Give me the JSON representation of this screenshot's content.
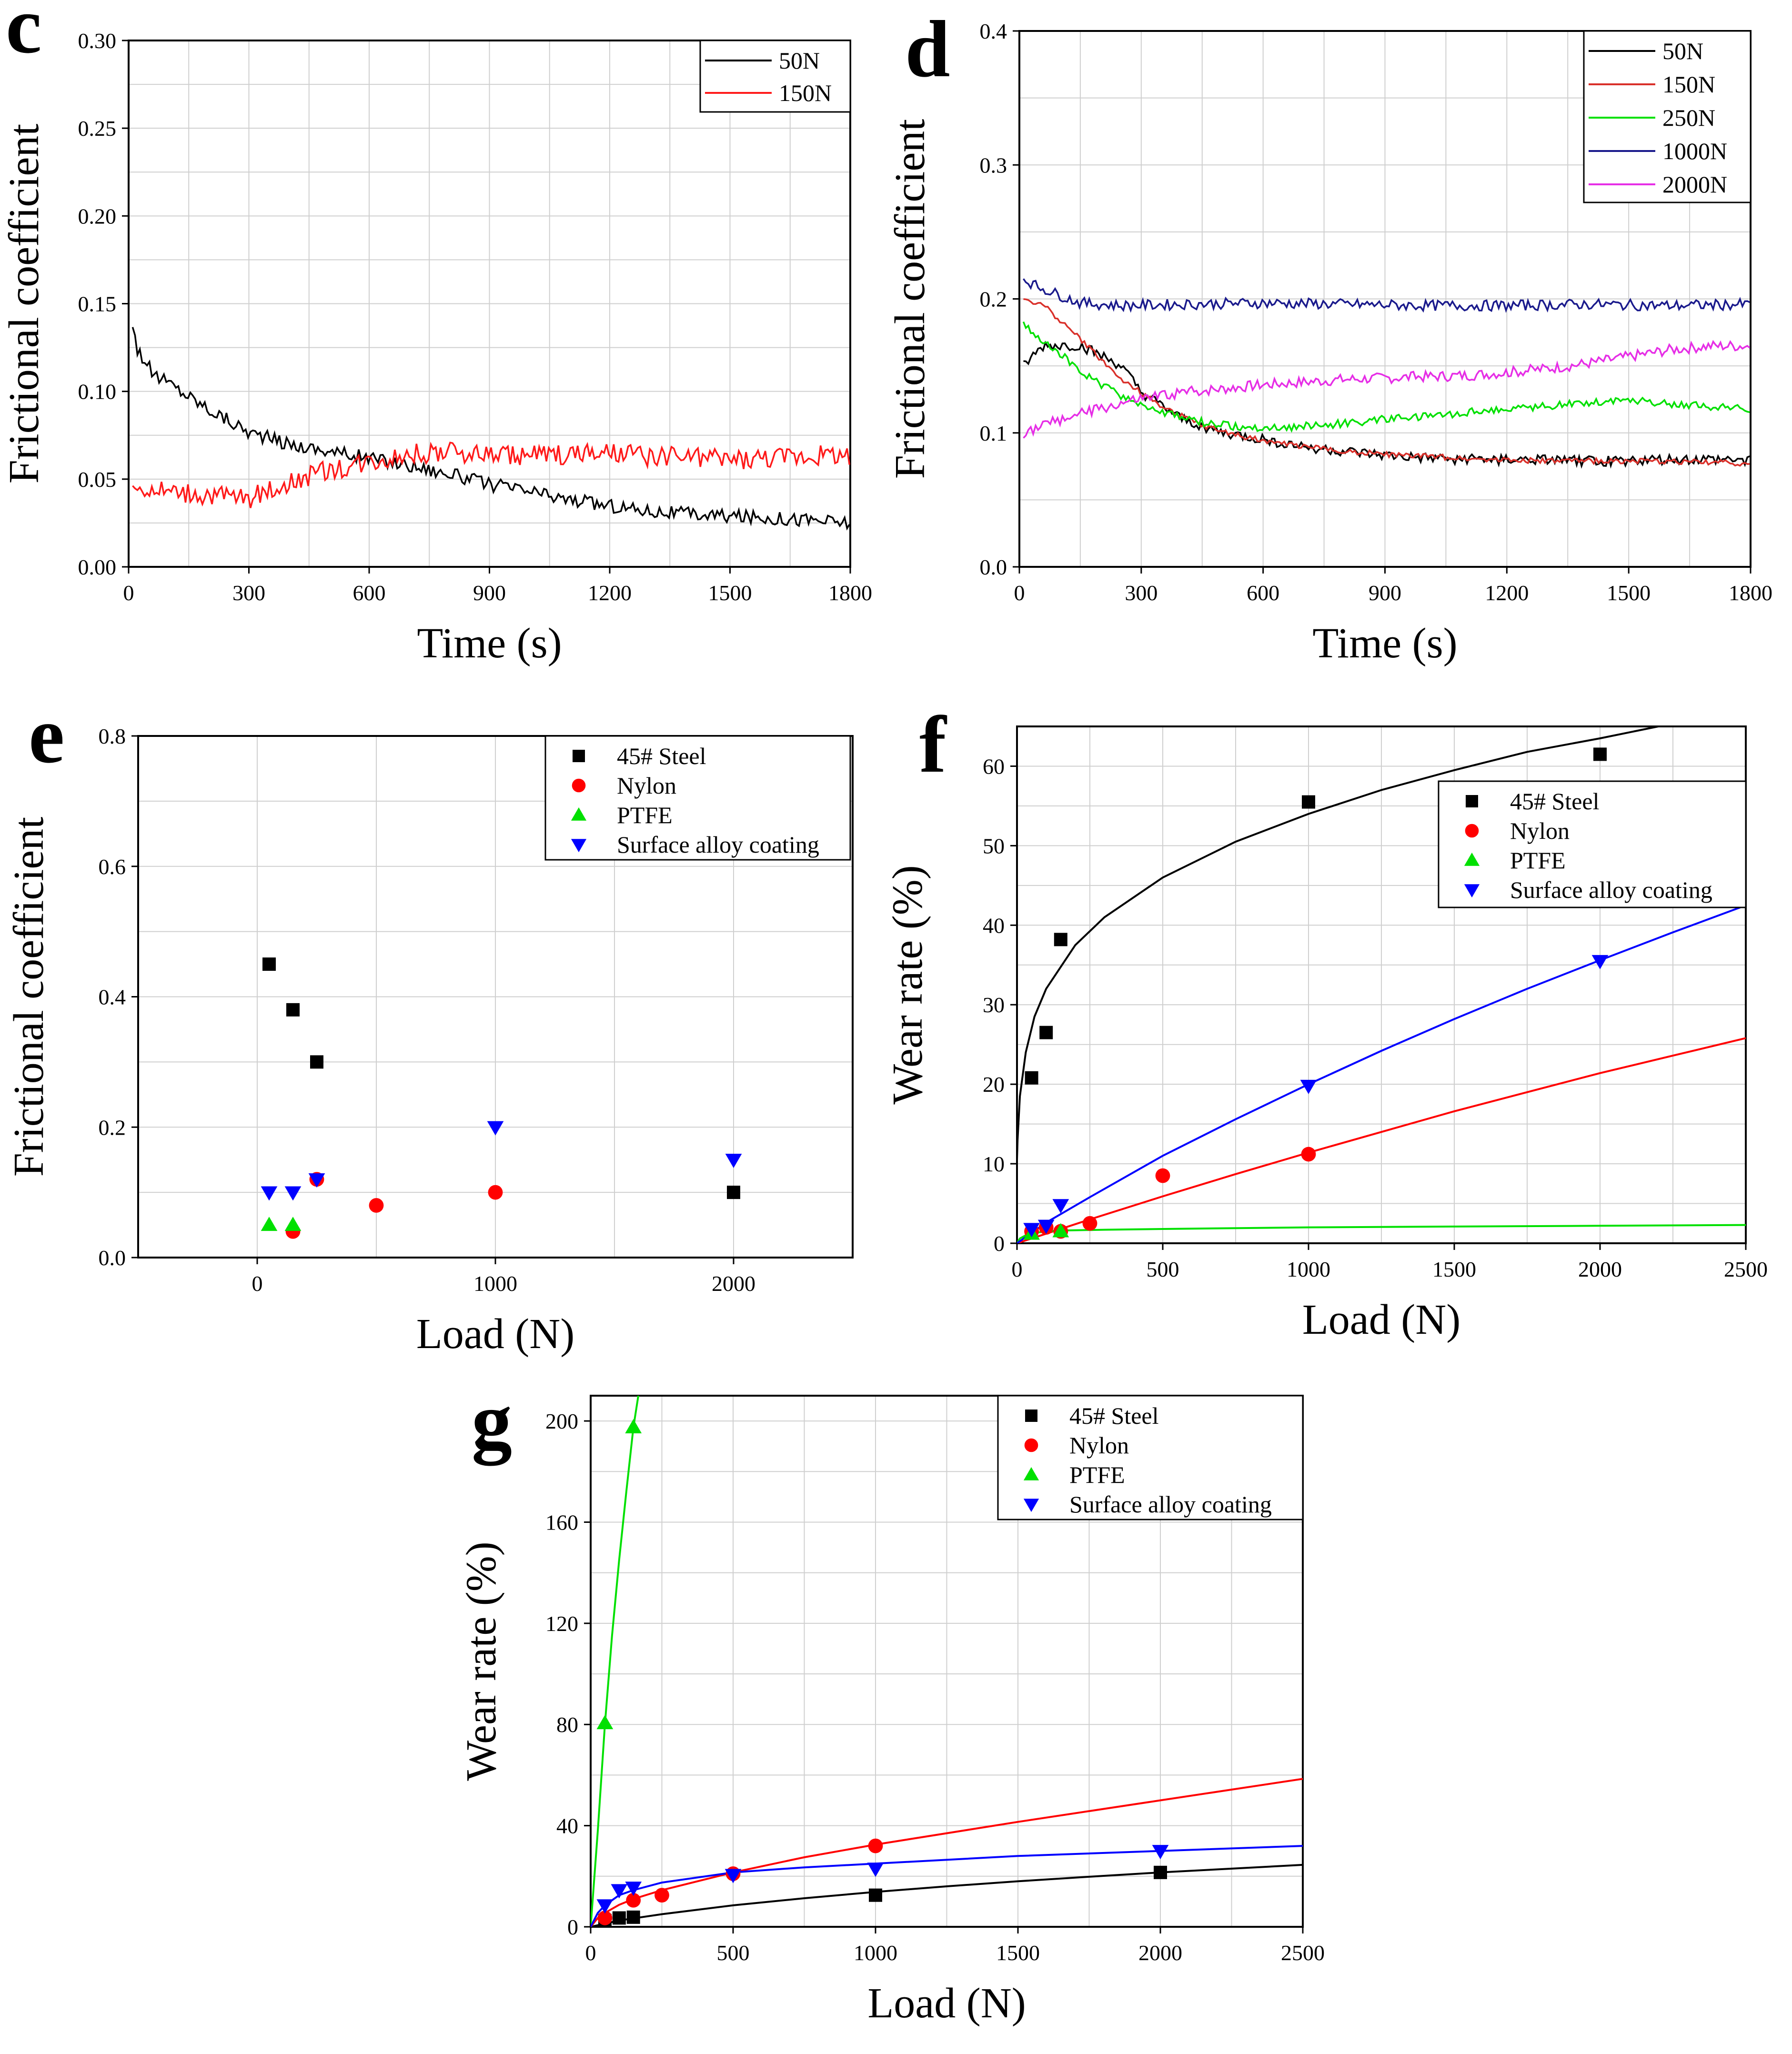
{
  "colors": {
    "black": "#000000",
    "red": "#ff0000",
    "green": "#00e000",
    "blue": "#0000ff",
    "navy": "#1a1a8c",
    "magenta": "#e62ee6",
    "brightred": "#ff1a1a",
    "grid": "#cfcfcf"
  },
  "chart_data": [
    {
      "id": "c",
      "panel_letter": "c",
      "type": "line",
      "xlabel": "Time (s)",
      "ylabel": "Frictional coefficient",
      "xlim": [
        0,
        1800
      ],
      "ylim": [
        0,
        0.3
      ],
      "xticks": [
        "0",
        "300",
        "600",
        "900",
        "1200",
        "1500",
        "1800"
      ],
      "yticks": [
        "0.00",
        "0.05",
        "0.10",
        "0.15",
        "0.20",
        "0.25",
        "0.30"
      ],
      "legend_position": "top-right",
      "series": [
        {
          "name": "50N",
          "color": "#000000",
          "noise": 0.004,
          "x": [
            10,
            20,
            60,
            100,
            200,
            300,
            400,
            500,
            600,
            700,
            800,
            900,
            1000,
            1100,
            1200,
            1300,
            1400,
            1500,
            1600,
            1700,
            1800
          ],
          "y": [
            0.14,
            0.125,
            0.11,
            0.105,
            0.09,
            0.077,
            0.07,
            0.066,
            0.062,
            0.058,
            0.053,
            0.047,
            0.043,
            0.038,
            0.035,
            0.032,
            0.03,
            0.029,
            0.028,
            0.027,
            0.025
          ]
        },
        {
          "name": "150N",
          "color": "#ff1a1a",
          "noise": 0.006,
          "x": [
            10,
            100,
            200,
            300,
            400,
            500,
            600,
            700,
            800,
            900,
            1000,
            1100,
            1200,
            1300,
            1400,
            1500,
            1600,
            1700,
            1800
          ],
          "y": [
            0.045,
            0.043,
            0.041,
            0.039,
            0.048,
            0.055,
            0.06,
            0.064,
            0.065,
            0.064,
            0.064,
            0.064,
            0.064,
            0.063,
            0.062,
            0.061,
            0.062,
            0.063,
            0.064
          ]
        }
      ]
    },
    {
      "id": "d",
      "panel_letter": "d",
      "type": "line",
      "xlabel": "Time (s)",
      "ylabel": "Frictional coefficient",
      "xlim": [
        0,
        1800
      ],
      "ylim": [
        0,
        0.4
      ],
      "xticks": [
        "0",
        "300",
        "600",
        "900",
        "1200",
        "1500",
        "1800"
      ],
      "yticks": [
        "0.0",
        "0.1",
        "0.2",
        "0.3",
        "0.4"
      ],
      "legend_position": "top-right",
      "series": [
        {
          "name": "50N",
          "color": "#000000",
          "noise": 0.004,
          "x": [
            10,
            60,
            150,
            250,
            300,
            400,
            500,
            600,
            700,
            800,
            900,
            1000,
            1200,
            1400,
            1600,
            1800
          ],
          "y": [
            0.15,
            0.165,
            0.165,
            0.15,
            0.13,
            0.11,
            0.1,
            0.095,
            0.09,
            0.086,
            0.083,
            0.081,
            0.08,
            0.079,
            0.08,
            0.08
          ]
        },
        {
          "name": "150N",
          "color": "#d9302a",
          "noise": 0.002,
          "x": [
            10,
            60,
            150,
            250,
            350,
            450,
            550,
            650,
            750,
            900,
            1100,
            1300,
            1500,
            1700,
            1800
          ],
          "y": [
            0.2,
            0.195,
            0.17,
            0.14,
            0.12,
            0.105,
            0.097,
            0.092,
            0.088,
            0.084,
            0.081,
            0.079,
            0.079,
            0.078,
            0.077
          ]
        },
        {
          "name": "250N",
          "color": "#00e000",
          "noise": 0.003,
          "x": [
            10,
            80,
            150,
            250,
            350,
            450,
            550,
            650,
            750,
            900,
            1000,
            1100,
            1200,
            1300,
            1400,
            1500,
            1600,
            1700,
            1800
          ],
          "y": [
            0.18,
            0.165,
            0.145,
            0.128,
            0.115,
            0.108,
            0.104,
            0.104,
            0.106,
            0.11,
            0.112,
            0.115,
            0.118,
            0.12,
            0.123,
            0.125,
            0.122,
            0.12,
            0.118
          ]
        },
        {
          "name": "1000N",
          "color": "#1a1a8c",
          "noise": 0.004,
          "x": [
            10,
            40,
            80,
            150,
            250,
            400,
            600,
            800,
            1000,
            1200,
            1400,
            1600,
            1800
          ],
          "y": [
            0.215,
            0.21,
            0.205,
            0.197,
            0.195,
            0.196,
            0.197,
            0.196,
            0.195,
            0.195,
            0.196,
            0.195,
            0.196
          ]
        },
        {
          "name": "2000N",
          "color": "#e62ee6",
          "noise": 0.004,
          "x": [
            10,
            100,
            200,
            300,
            400,
            500,
            600,
            700,
            800,
            900,
            1000,
            1100,
            1200,
            1300,
            1400,
            1500,
            1600,
            1700,
            1800
          ],
          "y": [
            0.1,
            0.11,
            0.118,
            0.125,
            0.13,
            0.133,
            0.136,
            0.138,
            0.14,
            0.141,
            0.142,
            0.143,
            0.145,
            0.148,
            0.152,
            0.157,
            0.162,
            0.165,
            0.165
          ]
        }
      ]
    },
    {
      "id": "e",
      "panel_letter": "e",
      "type": "scatter",
      "xlabel": "Load  (N)",
      "ylabel": "Frictional coefficient",
      "xlim": [
        -500,
        2500
      ],
      "ylim": [
        0,
        0.8
      ],
      "xticks": [
        "0",
        "1000",
        "2000"
      ],
      "yticks": [
        "0.0",
        "0.2",
        "0.4",
        "0.6",
        "0.8"
      ],
      "legend_position": "top-right",
      "series": [
        {
          "name": "45# Steel",
          "marker": "square",
          "color": "#000000",
          "x": [
            50,
            150,
            250,
            2000
          ],
          "y": [
            0.45,
            0.38,
            0.3,
            0.1
          ]
        },
        {
          "name": "Nylon",
          "marker": "circle",
          "color": "#ff0000",
          "x": [
            150,
            250,
            500,
            1000
          ],
          "y": [
            0.04,
            0.12,
            0.08,
            0.1
          ]
        },
        {
          "name": "PTFE",
          "marker": "triangle-up",
          "color": "#00e000",
          "x": [
            50,
            150
          ],
          "y": [
            0.05,
            0.05
          ]
        },
        {
          "name": "Surface alloy coating",
          "marker": "triangle-down",
          "color": "#0000ff",
          "x": [
            50,
            150,
            250,
            1000,
            2000
          ],
          "y": [
            0.1,
            0.1,
            0.12,
            0.2,
            0.15
          ]
        }
      ]
    },
    {
      "id": "f",
      "panel_letter": "f",
      "type": "scatter",
      "xlabel": "Load (N)",
      "ylabel": "Wear rate (%)",
      "xlim": [
        0,
        2500
      ],
      "ylim": [
        0,
        65
      ],
      "xticks": [
        "0",
        "500",
        "1000",
        "1500",
        "2000",
        "2500"
      ],
      "yticks": [
        "0",
        "10",
        "20",
        "30",
        "40",
        "50",
        "60"
      ],
      "legend_position": "top-right",
      "series": [
        {
          "name": "45# Steel",
          "marker": "square",
          "color": "#000000",
          "x": [
            50,
            100,
            150,
            1000,
            2000
          ],
          "y": [
            20.8,
            26.5,
            38.2,
            55.5,
            61.5
          ],
          "fit": {
            "x": [
              0,
              2,
              10,
              30,
              60,
              100,
              200,
              300,
              500,
              750,
              1000,
              1250,
              1500,
              1750,
              2000,
              2200
            ],
            "y": [
              10.5,
              13,
              18.5,
              24,
              28.5,
              32,
              37.5,
              41,
              46,
              50.5,
              54,
              57,
              59.5,
              61.8,
              63.5,
              65
            ]
          }
        },
        {
          "name": "Nylon",
          "marker": "circle",
          "color": "#ff0000",
          "x": [
            50,
            100,
            150,
            250,
            500,
            1000
          ],
          "y": [
            1.5,
            2.0,
            1.5,
            2.5,
            8.5,
            11.2
          ],
          "fit": {
            "x": [
              0,
              250,
              500,
              750,
              1000,
              1250,
              1500,
              1750,
              2000,
              2250,
              2500
            ],
            "y": [
              0,
              3.0,
              5.9,
              8.7,
              11.4,
              14.0,
              16.6,
              19.0,
              21.4,
              23.6,
              25.8
            ]
          }
        },
        {
          "name": "PTFE",
          "marker": "triangle-up",
          "color": "#00e000",
          "x": [
            50,
            150
          ],
          "y": [
            1.2,
            1.5
          ],
          "fit": {
            "x": [
              0,
              10,
              30,
              60,
              100,
              150,
              300,
              500,
              1000,
              1500,
              2000,
              2500
            ],
            "y": [
              0,
              0.6,
              1.0,
              1.3,
              1.5,
              1.6,
              1.7,
              1.8,
              2.0,
              2.1,
              2.2,
              2.3
            ]
          }
        },
        {
          "name": "Surface alloy coating",
          "marker": "triangle-down",
          "color": "#0000ff",
          "x": [
            50,
            100,
            150,
            1000,
            2000
          ],
          "y": [
            1.8,
            2.2,
            4.8,
            19.8,
            35.5
          ],
          "fit": {
            "x": [
              0,
              100,
              250,
              500,
              750,
              1000,
              1250,
              1500,
              1750,
              2000,
              2250,
              2500
            ],
            "y": [
              0,
              2.6,
              5.8,
              11.0,
              15.6,
              20.0,
              24.2,
              28.2,
              32.0,
              35.6,
              39.1,
              42.5
            ]
          }
        }
      ]
    },
    {
      "id": "g",
      "panel_letter": "g",
      "type": "scatter",
      "xlabel": "Load (N)",
      "ylabel": "Wear rate (%)",
      "xlim": [
        0,
        2500
      ],
      "ylim": [
        0,
        210
      ],
      "xticks": [
        "0",
        "500",
        "1000",
        "1500",
        "2000",
        "2500"
      ],
      "yticks": [
        "0",
        "40",
        "80",
        "120",
        "160",
        "200"
      ],
      "legend_position": "top-right",
      "series": [
        {
          "name": "45# Steel",
          "marker": "square",
          "color": "#000000",
          "x": [
            50,
            100,
            150,
            1000,
            2000
          ],
          "y": [
            2.5,
            3.5,
            3.8,
            12.5,
            21.5
          ],
          "fit": {
            "x": [
              0,
              100,
              250,
              500,
              750,
              1000,
              1250,
              1500,
              1750,
              2000,
              2250,
              2500
            ],
            "y": [
              0,
              2.5,
              5.0,
              8.5,
              11.3,
              13.8,
              16.0,
              18.0,
              19.8,
              21.5,
              23.0,
              24.5
            ]
          }
        },
        {
          "name": "Nylon",
          "marker": "circle",
          "color": "#ff0000",
          "x": [
            50,
            150,
            250,
            500,
            1000
          ],
          "y": [
            3.5,
            10.5,
            12.5,
            21.0,
            32.0
          ],
          "fit": {
            "x": [
              0,
              25,
              50,
              100,
              150,
              250,
              500,
              750,
              1000,
              1500,
              2000,
              2500
            ],
            "y": [
              0,
              3.5,
              5.5,
              8.7,
              11.0,
              14.5,
              21.5,
              27.5,
              32.5,
              41.5,
              50.0,
              58.5
            ]
          }
        },
        {
          "name": "PTFE",
          "marker": "triangle-up",
          "color": "#00e000",
          "x": [
            50,
            150
          ],
          "y": [
            80.5,
            197.5
          ],
          "fit": {
            "x": [
              0,
              25,
              50,
              75,
              100,
              125,
              150,
              170
            ],
            "y": [
              0,
              38,
              80,
              115,
              145,
              172,
              197.5,
              212
            ]
          }
        },
        {
          "name": "Surface alloy coating",
          "marker": "triangle-down",
          "color": "#0000ff",
          "x": [
            50,
            100,
            150,
            500,
            1000,
            2000
          ],
          "y": [
            8.5,
            14.5,
            15.5,
            20.5,
            23.0,
            30.0
          ],
          "fit": {
            "x": [
              0,
              25,
              50,
              100,
              150,
              250,
              500,
              750,
              1000,
              1500,
              2000,
              2500
            ],
            "y": [
              0,
              5.5,
              8.5,
              12.5,
              14.5,
              17.5,
              21.5,
              23.5,
              25.0,
              28.0,
              30.0,
              32.0
            ]
          }
        }
      ]
    }
  ]
}
